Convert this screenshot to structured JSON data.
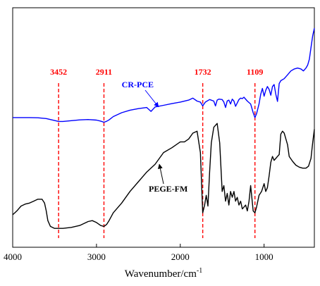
{
  "chart_data": {
    "type": "line",
    "xlabel": "Wavenumber/cm",
    "xlabel_superscript": "-1",
    "xlim": [
      4000,
      400
    ],
    "x_ticks": [
      4000,
      3000,
      2000,
      1000
    ],
    "x_tick_labels": [
      "4000",
      "3000",
      "2000",
      "1000"
    ],
    "y_ticks_visible": false,
    "grid": false,
    "peak_markers": [
      {
        "x": 3452,
        "label": "3452"
      },
      {
        "x": 2911,
        "label": "2911"
      },
      {
        "x": 1732,
        "label": "1732"
      },
      {
        "x": 1109,
        "label": "1109"
      }
    ],
    "series": [
      {
        "name": "CR-PCE",
        "color": "#0000ff",
        "x": [
          4000,
          3900,
          3800,
          3700,
          3600,
          3500,
          3452,
          3400,
          3300,
          3200,
          3100,
          3000,
          2950,
          2911,
          2880,
          2850,
          2800,
          2700,
          2600,
          2500,
          2400,
          2350,
          2300,
          2200,
          2100,
          2000,
          1900,
          1850,
          1800,
          1760,
          1732,
          1700,
          1650,
          1600,
          1580,
          1560,
          1540,
          1500,
          1480,
          1460,
          1440,
          1420,
          1400,
          1380,
          1360,
          1340,
          1300,
          1280,
          1260,
          1240,
          1200,
          1160,
          1130,
          1109,
          1090,
          1060,
          1040,
          1020,
          1000,
          980,
          960,
          940,
          920,
          900,
          880,
          860,
          840,
          820,
          800,
          760,
          720,
          680,
          640,
          600,
          560,
          530,
          500,
          480,
          460,
          440,
          420,
          400
        ],
        "y": [
          -2.0,
          -2.0,
          -2.0,
          -2.1,
          -2.5,
          -3.5,
          -4.0,
          -4.0,
          -3.6,
          -3.2,
          -3.0,
          -3.3,
          -3.8,
          -4.4,
          -3.9,
          -3.2,
          -1.5,
          0.5,
          1.8,
          2.6,
          3.2,
          1.2,
          3.5,
          4.3,
          5.2,
          6.0,
          7.0,
          8.0,
          6.5,
          6.0,
          4.0,
          6.0,
          7.3,
          6.5,
          4.0,
          7.0,
          7.5,
          7.3,
          6.0,
          3.2,
          6.6,
          7.0,
          5.0,
          7.5,
          6.5,
          3.8,
          7.3,
          8.0,
          7.8,
          8.5,
          6.5,
          5.0,
          0.5,
          -2.0,
          0.0,
          5.0,
          10.0,
          13.0,
          9.0,
          12.0,
          14.0,
          12.5,
          9.5,
          14.0,
          15.0,
          10.0,
          6.3,
          15.5,
          17.0,
          18.0,
          20.0,
          22.0,
          23.0,
          23.5,
          23.0,
          22.0,
          23.5,
          25.0,
          28.0,
          34.0,
          40.0,
          44.0
        ]
      },
      {
        "name": "PEGE-FM",
        "color": "#000000",
        "x": [
          4000,
          3950,
          3900,
          3850,
          3800,
          3750,
          3700,
          3650,
          3620,
          3600,
          3580,
          3550,
          3500,
          3452,
          3400,
          3300,
          3200,
          3100,
          3050,
          3000,
          2950,
          2911,
          2880,
          2850,
          2800,
          2700,
          2600,
          2500,
          2400,
          2300,
          2200,
          2100,
          2000,
          1950,
          1900,
          1850,
          1800,
          1760,
          1732,
          1710,
          1690,
          1670,
          1650,
          1630,
          1600,
          1560,
          1530,
          1500,
          1480,
          1460,
          1440,
          1420,
          1400,
          1380,
          1360,
          1340,
          1320,
          1300,
          1280,
          1260,
          1240,
          1220,
          1200,
          1180,
          1160,
          1130,
          1109,
          1090,
          1060,
          1030,
          1000,
          980,
          960,
          940,
          920,
          900,
          880,
          860,
          840,
          820,
          800,
          780,
          760,
          740,
          720,
          700,
          660,
          620,
          580,
          540,
          500,
          470,
          440,
          420,
          400
        ],
        "y": [
          -52.0,
          -50.0,
          -47.5,
          -46.5,
          -46.0,
          -45.0,
          -44.0,
          -44.0,
          -46.0,
          -50.0,
          -55.0,
          -58.0,
          -59.0,
          -59.0,
          -59.0,
          -58.5,
          -57.5,
          -55.5,
          -55.0,
          -56.0,
          -57.5,
          -58.0,
          -57.0,
          -55.0,
          -51.0,
          -46.0,
          -40.0,
          -35.0,
          -30.0,
          -26.0,
          -20.0,
          -17.5,
          -14.5,
          -14.5,
          -13.0,
          -10.0,
          -9.0,
          -20.0,
          -51.0,
          -47.0,
          -42.0,
          -47.5,
          -30.0,
          -15.0,
          -7.0,
          -5.0,
          -15.0,
          -40.0,
          -37.0,
          -45.0,
          -41.0,
          -47.0,
          -40.0,
          -43.0,
          -40.0,
          -45.0,
          -43.0,
          -47.0,
          -45.0,
          -49.0,
          -48.0,
          -47.0,
          -50.0,
          -45.0,
          -37.0,
          -50.0,
          -51.0,
          -48.0,
          -42.0,
          -40.0,
          -36.0,
          -40.0,
          -38.0,
          -32.0,
          -25.0,
          -22.0,
          -24.0,
          -23.0,
          -22.0,
          -21.0,
          -10.5,
          -9.0,
          -10.0,
          -13.0,
          -16.0,
          -22.0,
          -24.5,
          -26.5,
          -27.5,
          -28.0,
          -28.0,
          -27.0,
          -23.0,
          -15.0,
          -8.0
        ]
      }
    ],
    "annotations": [
      {
        "text": "CR-PCE",
        "color": "#0000ff",
        "target_x": 2260,
        "target_y": 3.5
      },
      {
        "text": "PEGE-FM",
        "color": "#000000",
        "target_x": 2250,
        "target_y": -26.0
      }
    ]
  }
}
